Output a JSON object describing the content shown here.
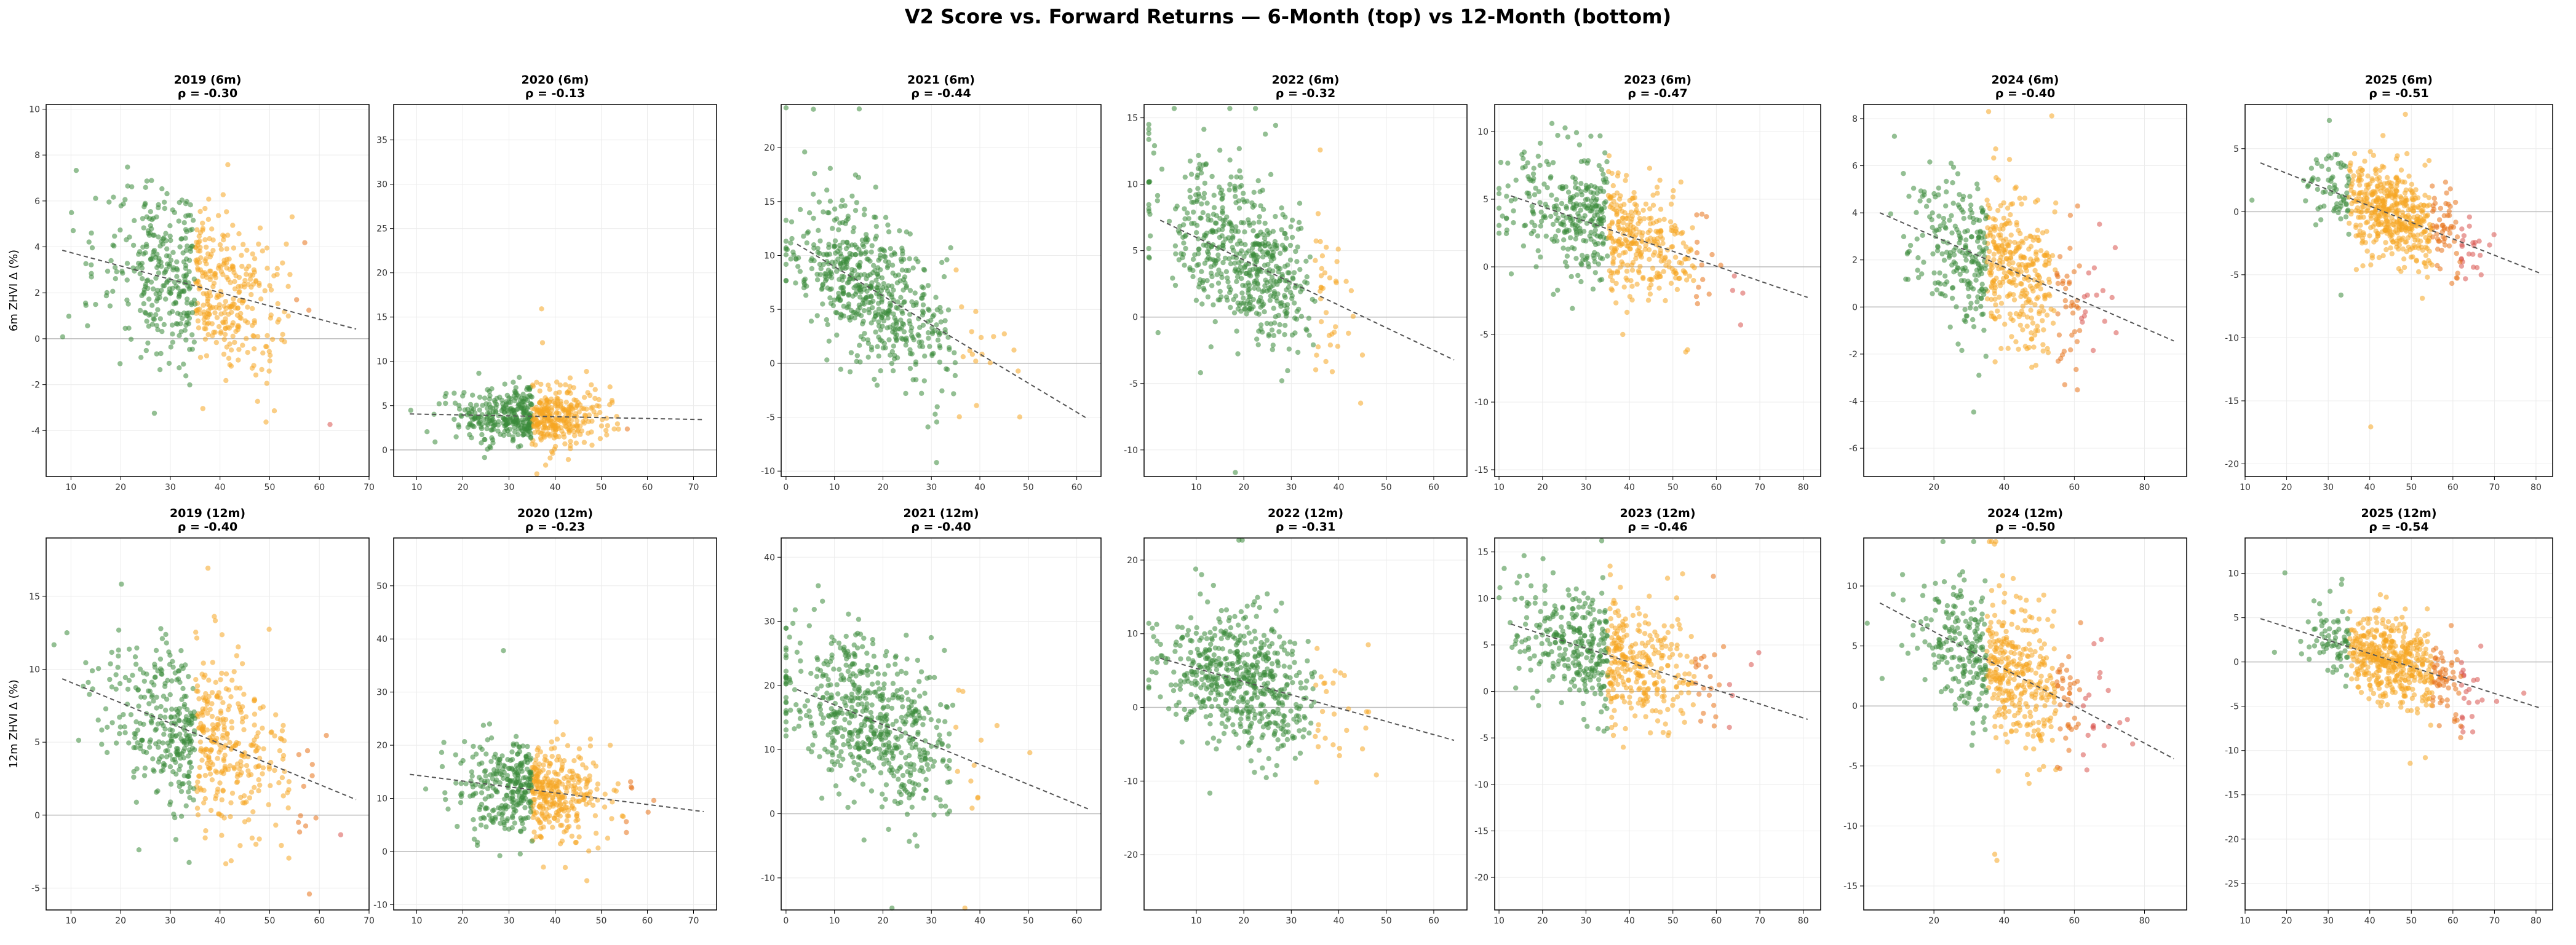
{
  "figure_title": "V2 Score vs. Forward Returns — 6-Month (top) vs 12-Month (bottom)",
  "chart_data": {
    "type": "scatter",
    "layout": "2 rows x 7 columns",
    "colors": {
      "low_score": "#3a8a3a",
      "mid_score": "#f5a623",
      "high_mid_score": "#e8731a",
      "high_score": "#d9534f",
      "trend_line": "#555555",
      "zero_line": "#bbbbbb",
      "grid": "#ececec"
    },
    "color_bands": [
      35,
      55,
      62
    ],
    "row_ylabels": [
      "6m ZHVI Δ (%)",
      "12m ZHVI Δ (%)"
    ],
    "panels": [
      {
        "title": "2019 (6m)",
        "rho": "ρ = -0.30",
        "xlim": [
          5,
          70
        ],
        "ylim": [
          -6,
          10.2
        ],
        "xticks": [
          10,
          20,
          30,
          40,
          50,
          60,
          70
        ],
        "yticks": [
          -4,
          -2,
          0,
          2,
          4,
          6,
          8,
          10
        ],
        "x_center": 35,
        "x_spread": 9,
        "y_intercept": 2.3,
        "slope": -0.058,
        "noise": 1.8
      },
      {
        "title": "2020 (6m)",
        "rho": "ρ = -0.13",
        "xlim": [
          5,
          75
        ],
        "ylim": [
          -3,
          39
        ],
        "xticks": [
          10,
          20,
          30,
          40,
          50,
          60,
          70
        ],
        "yticks": [
          0,
          5,
          10,
          15,
          20,
          25,
          30,
          35
        ],
        "x_center": 35,
        "x_spread": 8,
        "y_intercept": 3.8,
        "slope": -0.01,
        "noise": 1.6
      },
      {
        "title": "2021 (6m)",
        "rho": "ρ = -0.44",
        "xlim": [
          -1,
          65
        ],
        "ylim": [
          -10.5,
          24
        ],
        "xticks": [
          0,
          10,
          20,
          30,
          40,
          50,
          60
        ],
        "yticks": [
          -10,
          -5,
          0,
          5,
          10,
          15,
          20
        ],
        "x_center": 18,
        "x_spread": 9,
        "y_intercept": 6.8,
        "slope": -0.27,
        "noise": 3.5
      },
      {
        "title": "2022 (6m)",
        "rho": "ρ = -0.32",
        "xlim": [
          -1,
          67
        ],
        "ylim": [
          -12,
          16
        ],
        "xticks": [
          10,
          20,
          30,
          40,
          50,
          60
        ],
        "yticks": [
          -10,
          -5,
          0,
          5,
          10,
          15
        ],
        "x_center": 20,
        "x_spread": 9,
        "y_intercept": 4.3,
        "slope": -0.17,
        "noise": 3.0
      },
      {
        "title": "2023 (6m)",
        "rho": "ρ = -0.47",
        "xlim": [
          9,
          84
        ],
        "ylim": [
          -15.5,
          12
        ],
        "xticks": [
          10,
          20,
          30,
          40,
          50,
          60,
          70,
          80
        ],
        "yticks": [
          -15,
          -10,
          -5,
          0,
          5,
          10
        ],
        "x_center": 35,
        "x_spread": 11,
        "y_intercept": 2.8,
        "slope": -0.11,
        "noise": 2.2
      },
      {
        "title": "2024 (6m)",
        "rho": "ρ = -0.40",
        "xlim": [
          0,
          92
        ],
        "ylim": [
          -7.2,
          8.6
        ],
        "xticks": [
          20,
          40,
          60,
          80
        ],
        "yticks": [
          -6,
          -4,
          -2,
          0,
          2,
          4,
          6,
          8
        ],
        "x_center": 40,
        "x_spread": 12,
        "y_intercept": 1.7,
        "slope": -0.065,
        "noise": 1.6
      },
      {
        "title": "2025 (6m)",
        "rho": "ρ = -0.51",
        "xlim": [
          10,
          84
        ],
        "ylim": [
          -21,
          8.5
        ],
        "xticks": [
          10,
          20,
          30,
          40,
          50,
          60,
          70,
          80
        ],
        "yticks": [
          -20,
          -15,
          -10,
          -5,
          0,
          5
        ],
        "x_center": 45,
        "x_spread": 9,
        "y_intercept": -0.2,
        "slope": -0.13,
        "noise": 1.8
      }
    ],
    "panels_12m": [
      {
        "title": "2019 (12m)",
        "rho": "ρ = -0.40",
        "xlim": [
          5,
          70
        ],
        "ylim": [
          -6.5,
          19
        ],
        "xticks": [
          10,
          20,
          30,
          40,
          50,
          60,
          70
        ],
        "yticks": [
          -5,
          0,
          5,
          10,
          15
        ],
        "x_center": 35,
        "x_spread": 9,
        "y_intercept": 5.6,
        "slope": -0.14,
        "noise": 3.0
      },
      {
        "title": "2020 (12m)",
        "rho": "ρ = -0.23",
        "xlim": [
          5,
          75
        ],
        "ylim": [
          -11,
          59
        ],
        "xticks": [
          10,
          20,
          30,
          40,
          50,
          60,
          70
        ],
        "yticks": [
          -10,
          0,
          10,
          20,
          30,
          40,
          50
        ],
        "x_center": 35,
        "x_spread": 8,
        "y_intercept": 11.6,
        "slope": -0.11,
        "noise": 4.5
      },
      {
        "title": "2021 (12m)",
        "rho": "ρ = -0.40",
        "xlim": [
          -1,
          65
        ],
        "ylim": [
          -15,
          43
        ],
        "xticks": [
          0,
          10,
          20,
          30,
          40,
          50,
          60
        ],
        "yticks": [
          -10,
          0,
          10,
          20,
          30,
          40
        ],
        "x_center": 18,
        "x_spread": 9,
        "y_intercept": 14.5,
        "slope": -0.31,
        "noise": 6.0
      },
      {
        "title": "2022 (12m)",
        "rho": "ρ = -0.31",
        "xlim": [
          -1,
          67
        ],
        "ylim": [
          -27.5,
          23
        ],
        "xticks": [
          10,
          20,
          30,
          40,
          50,
          60
        ],
        "yticks": [
          -20,
          -10,
          0,
          10,
          20
        ],
        "x_center": 20,
        "x_spread": 9,
        "y_intercept": 3.5,
        "slope": -0.18,
        "noise": 4.5
      },
      {
        "title": "2023 (12m)",
        "rho": "ρ = -0.46",
        "xlim": [
          9,
          84
        ],
        "ylim": [
          -23.5,
          16.5
        ],
        "xticks": [
          10,
          20,
          30,
          40,
          50,
          60,
          70,
          80
        ],
        "yticks": [
          -20,
          -15,
          -10,
          -5,
          0,
          5,
          10,
          15
        ],
        "x_center": 35,
        "x_spread": 11,
        "y_intercept": 3.9,
        "slope": -0.15,
        "noise": 3.3
      },
      {
        "title": "2024 (12m)",
        "rho": "ρ = -0.50",
        "xlim": [
          0,
          92
        ],
        "ylim": [
          -17,
          14
        ],
        "xticks": [
          20,
          40,
          60,
          80
        ],
        "yticks": [
          -15,
          -10,
          -5,
          0,
          5,
          10
        ],
        "x_center": 40,
        "x_spread": 12,
        "y_intercept": 3.1,
        "slope": -0.155,
        "noise": 2.8
      },
      {
        "title": "2025 (12m)",
        "rho": "ρ = -0.54",
        "xlim": [
          10,
          84
        ],
        "ylim": [
          -28,
          14
        ],
        "xticks": [
          10,
          20,
          30,
          40,
          50,
          60,
          70,
          80
        ],
        "yticks": [
          -25,
          -20,
          -15,
          -10,
          -5,
          0,
          5,
          10
        ],
        "x_center": 45,
        "x_spread": 9,
        "y_intercept": 0.2,
        "slope": -0.15,
        "noise": 2.3
      }
    ],
    "points_per_panel": 600
  }
}
